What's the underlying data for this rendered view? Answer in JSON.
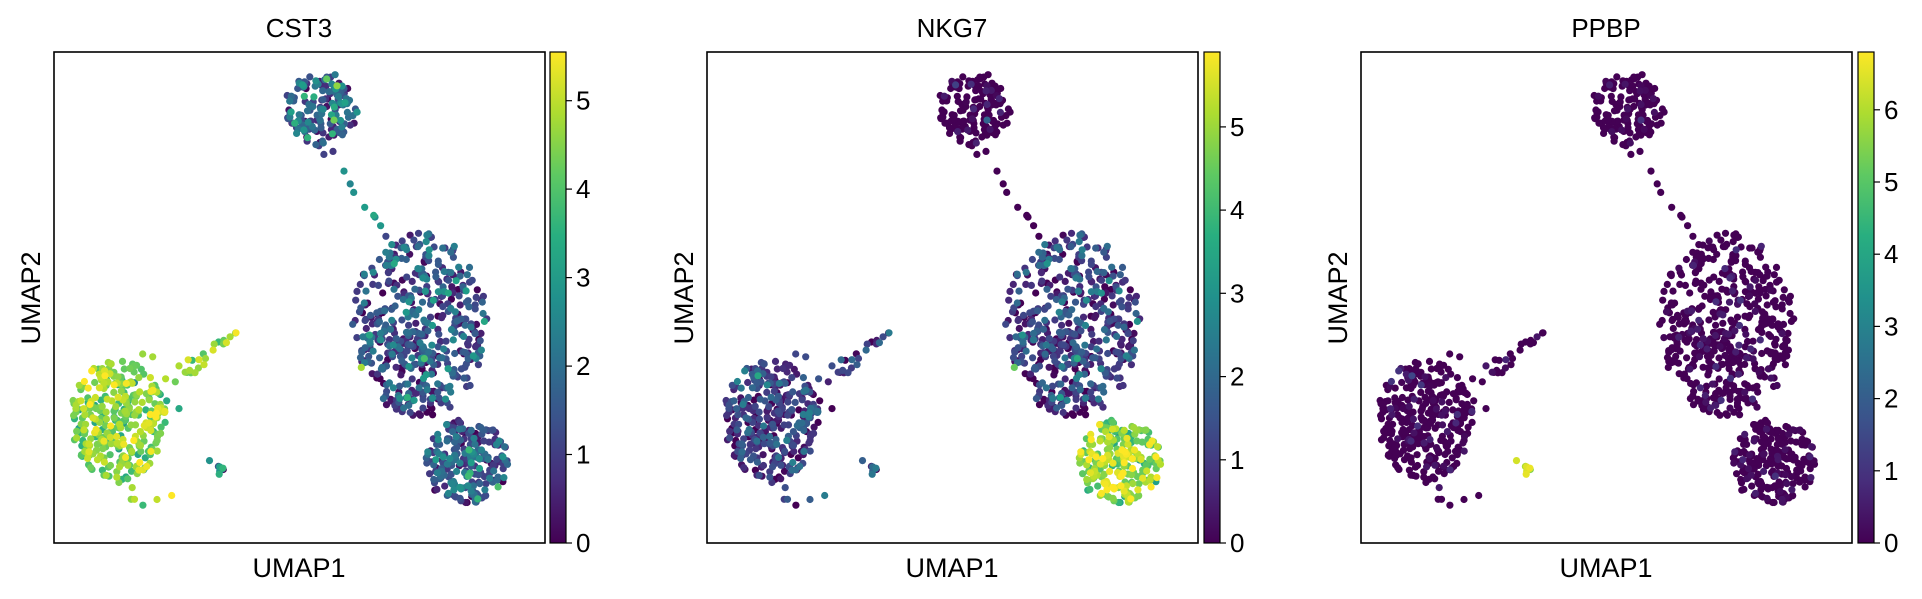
{
  "chart_data": [
    {
      "type": "scatter",
      "title": "CST3",
      "xlabel": "UMAP1",
      "ylabel": "UMAP2",
      "xticks": [],
      "yticks": [],
      "grid": false,
      "colormap": "viridis",
      "colorbar": {
        "min": 0,
        "max": 5.55,
        "ticks": [
          0,
          1,
          2,
          3,
          4,
          5
        ]
      },
      "clusters": [
        {
          "name": "top-small-cluster",
          "expression_mean": 1.8,
          "expression_spread": 1.0
        },
        {
          "name": "right-large-cluster",
          "expression_mean": 1.3,
          "expression_spread": 0.9
        },
        {
          "name": "right-lower-tail",
          "expression_mean": 1.4,
          "expression_spread": 0.9
        },
        {
          "name": "left-cluster",
          "expression_mean": 4.5,
          "expression_spread": 0.6
        },
        {
          "name": "left-arm",
          "expression_mean": 4.6,
          "expression_spread": 0.5
        },
        {
          "name": "small-satellite",
          "expression_mean": 2.6,
          "expression_spread": 1.0
        }
      ]
    },
    {
      "type": "scatter",
      "title": "NKG7",
      "xlabel": "UMAP1",
      "ylabel": "UMAP2",
      "xticks": [],
      "yticks": [],
      "grid": false,
      "colormap": "viridis",
      "colorbar": {
        "min": 0,
        "max": 5.9,
        "ticks": [
          0,
          1,
          2,
          3,
          4,
          5
        ]
      },
      "clusters": [
        {
          "name": "top-small-cluster",
          "expression_mean": 0.4,
          "expression_spread": 0.6
        },
        {
          "name": "right-large-cluster",
          "expression_mean": 1.0,
          "expression_spread": 0.9
        },
        {
          "name": "right-lower-tail",
          "expression_mean": 4.8,
          "expression_spread": 0.8
        },
        {
          "name": "left-cluster",
          "expression_mean": 1.0,
          "expression_spread": 0.8
        },
        {
          "name": "left-arm",
          "expression_mean": 1.0,
          "expression_spread": 0.8
        },
        {
          "name": "small-satellite",
          "expression_mean": 1.6,
          "expression_spread": 0.8
        }
      ]
    },
    {
      "type": "scatter",
      "title": "PPBP",
      "xlabel": "UMAP1",
      "ylabel": "UMAP2",
      "xticks": [],
      "yticks": [],
      "grid": false,
      "colormap": "viridis",
      "colorbar": {
        "min": 0,
        "max": 6.8,
        "ticks": [
          0,
          1,
          2,
          3,
          4,
          5,
          6
        ]
      },
      "clusters": [
        {
          "name": "top-small-cluster",
          "expression_mean": 0.2,
          "expression_spread": 0.3
        },
        {
          "name": "right-large-cluster",
          "expression_mean": 0.2,
          "expression_spread": 0.4
        },
        {
          "name": "right-lower-tail",
          "expression_mean": 0.15,
          "expression_spread": 0.3
        },
        {
          "name": "left-cluster",
          "expression_mean": 0.2,
          "expression_spread": 0.4
        },
        {
          "name": "left-arm",
          "expression_mean": 0.2,
          "expression_spread": 0.4
        },
        {
          "name": "small-satellite",
          "expression_mean": 6.3,
          "expression_spread": 0.3
        }
      ]
    }
  ]
}
